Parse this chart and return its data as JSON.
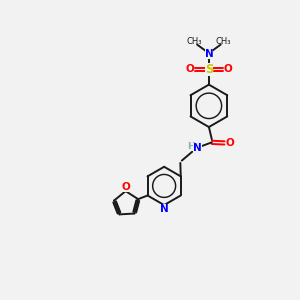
{
  "bg_color": "#f2f2f2",
  "bond_color": "#1a1a1a",
  "n_color": "#0000ff",
  "o_color": "#ff0000",
  "s_color": "#cccc00",
  "h_color": "#7fb3b3",
  "figsize": [
    3.0,
    3.0
  ],
  "dpi": 100,
  "xlim": [
    0,
    10
  ],
  "ylim": [
    0,
    10
  ]
}
